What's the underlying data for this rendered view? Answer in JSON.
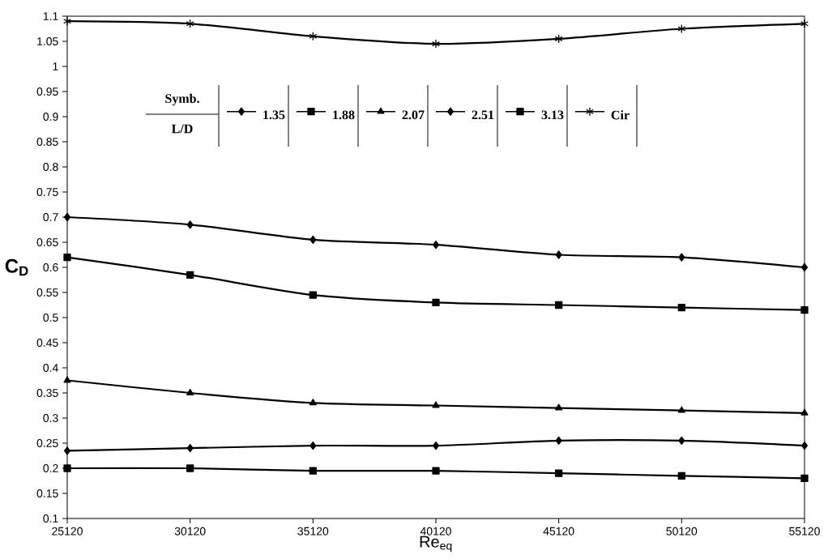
{
  "chart_data": {
    "type": "line",
    "xlabel": "Re$_{eq}$",
    "ylabel": "C$_{D}$",
    "legend_title": "L/D",
    "annotations": [
      "Symb."
    ],
    "x": [
      25120,
      30120,
      35120,
      40120,
      45120,
      50120,
      55120
    ],
    "xlim": [
      25120,
      55120
    ],
    "xticks": [
      25120,
      30120,
      35120,
      40120,
      45120,
      50120,
      55120
    ],
    "ylim": [
      0.1,
      1.1
    ],
    "yticks": [
      0.1,
      0.15,
      0.2,
      0.25,
      0.3,
      0.35,
      0.4,
      0.45,
      0.5,
      0.55,
      0.6,
      0.65,
      0.7,
      0.75,
      0.8,
      0.85,
      0.9,
      0.95,
      1,
      1.05,
      1.1
    ],
    "grid": false,
    "legend": "top left",
    "line_style": "solid",
    "series": [
      {
        "name": "1.35",
        "color": "#000000",
        "marker": "diamond",
        "values": [
          0.7,
          0.685,
          0.655,
          0.645,
          0.625,
          0.62,
          0.6
        ]
      },
      {
        "name": "1.88",
        "color": "#000000",
        "marker": "square",
        "values": [
          0.62,
          0.585,
          0.545,
          0.53,
          0.525,
          0.52,
          0.515
        ]
      },
      {
        "name": "2.07",
        "color": "#000000",
        "marker": "triangle",
        "values": [
          0.375,
          0.35,
          0.33,
          0.325,
          0.32,
          0.315,
          0.31
        ]
      },
      {
        "name": "2.51",
        "color": "#000000",
        "marker": "diamond",
        "values": [
          0.235,
          0.24,
          0.245,
          0.245,
          0.255,
          0.255,
          0.245
        ]
      },
      {
        "name": "3.13",
        "color": "#000000",
        "marker": "square",
        "values": [
          0.2,
          0.2,
          0.195,
          0.195,
          0.19,
          0.185,
          0.18
        ]
      },
      {
        "name": "Cir",
        "color": "#000000",
        "marker": "cross",
        "values": [
          1.09,
          1.085,
          1.06,
          1.045,
          1.055,
          1.075,
          1.085
        ]
      }
    ]
  }
}
